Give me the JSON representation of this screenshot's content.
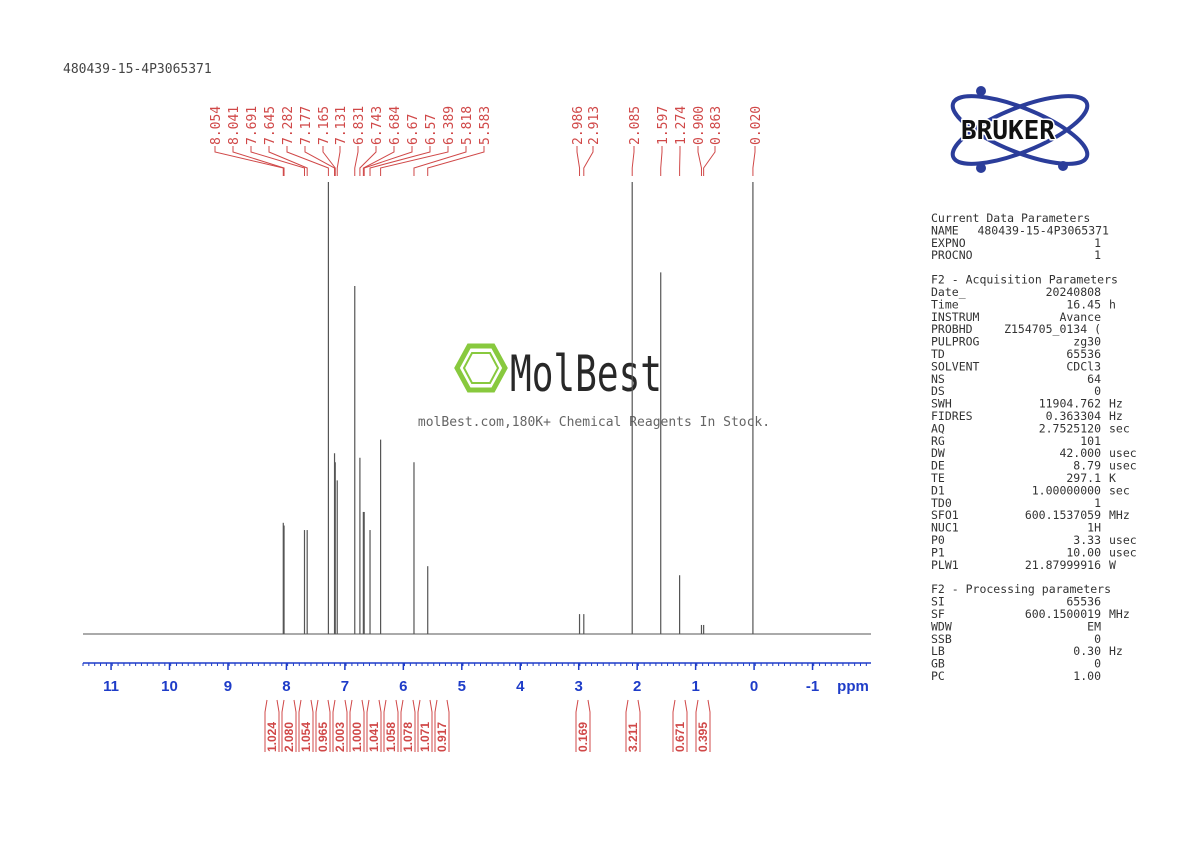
{
  "chart_data": {
    "type": "nmr",
    "title": "480439-15-4P3065371",
    "x_label": "ppm",
    "xlim": [
      11.48,
      -2.0
    ],
    "xticks": [
      11,
      10,
      9,
      8,
      7,
      6,
      5,
      4,
      3,
      2,
      1,
      0,
      -1
    ],
    "x": [
      8.054,
      8.041,
      7.691,
      7.645,
      7.282,
      7.177,
      7.165,
      7.131,
      6.831,
      6.743,
      6.684,
      6.67,
      6.57,
      6.389,
      5.818,
      5.583,
      2.986,
      2.913,
      2.085,
      1.597,
      1.274,
      {
        "value": 0.9,
        "label": "0.900"
      },
      0.863,
      {
        "value": 0.02,
        "label": "0.020"
      }
    ],
    "values": [
      24.6,
      24,
      23,
      23,
      100,
      40,
      38,
      34,
      77,
      39,
      27,
      27,
      23,
      43,
      38,
      15,
      4.4,
      4.4,
      100,
      80,
      13,
      2,
      2,
      100
    ],
    "ylim": [
      0,
      100
    ],
    "color": "#555555",
    "label_color": "#d04848",
    "integrals": [
      1.024,
      {
        "value": 2.08,
        "label": "2.080"
      },
      1.054,
      0.965,
      2.003,
      {
        "value": 1,
        "label": "1.000"
      },
      1.041,
      1.058,
      1.078,
      1.071,
      0.917,
      0.169,
      3.211,
      0.671,
      0.395
    ]
  },
  "logo": {
    "bruker": "BRUKER",
    "molbest": "MolBest",
    "tagline": "molBest.com,180K+ Chemical Reagents In Stock."
  },
  "params": [
    {
      "heading": "Current Data Parameters",
      "rows": [
        [
          "NAME",
          "480439-15-4P3065371"
        ],
        [
          "EXPNO",
          "1"
        ],
        [
          "PROCNO",
          "1"
        ]
      ]
    },
    {
      "heading": "F2 - Acquisition Parameters",
      "rows": [
        [
          "Date_",
          "20240808"
        ],
        [
          "Time",
          "16.45",
          "h"
        ],
        [
          "INSTRUM",
          "Avance"
        ],
        [
          "PROBHD",
          "Z154705_0134 ("
        ],
        [
          "PULPROG",
          "zg30"
        ],
        [
          "TD",
          "65536"
        ],
        [
          "SOLVENT",
          "CDCl3"
        ],
        [
          "NS",
          "64"
        ],
        [
          "DS",
          "0"
        ],
        [
          "SWH",
          "11904.762",
          "Hz"
        ],
        [
          "FIDRES",
          "0.363304",
          "Hz"
        ],
        [
          "AQ",
          "2.7525120",
          "sec"
        ],
        [
          "RG",
          "101"
        ],
        [
          "DW",
          "42.000",
          "usec"
        ],
        [
          "DE",
          "8.79",
          "usec"
        ],
        [
          "TE",
          "297.1",
          "K"
        ],
        [
          "D1",
          "1.00000000",
          "sec"
        ],
        [
          "TD0",
          "1"
        ],
        [
          "SFO1",
          "600.1537059",
          "MHz"
        ],
        [
          "NUC1",
          "1H"
        ],
        [
          "P0",
          "3.33",
          "usec"
        ],
        [
          "P1",
          "10.00",
          "usec"
        ],
        [
          "PLW1",
          "21.87999916",
          "W"
        ]
      ]
    },
    {
      "heading": "F2 - Processing parameters",
      "rows": [
        [
          "SI",
          "65536"
        ],
        [
          "SF",
          "600.1500019",
          "MHz"
        ],
        [
          "WDW",
          "EM"
        ],
        [
          "SSB",
          "0"
        ],
        [
          "LB",
          "0.30",
          "Hz"
        ],
        [
          "GB",
          "0"
        ],
        [
          "PC",
          "1.00"
        ]
      ]
    }
  ]
}
